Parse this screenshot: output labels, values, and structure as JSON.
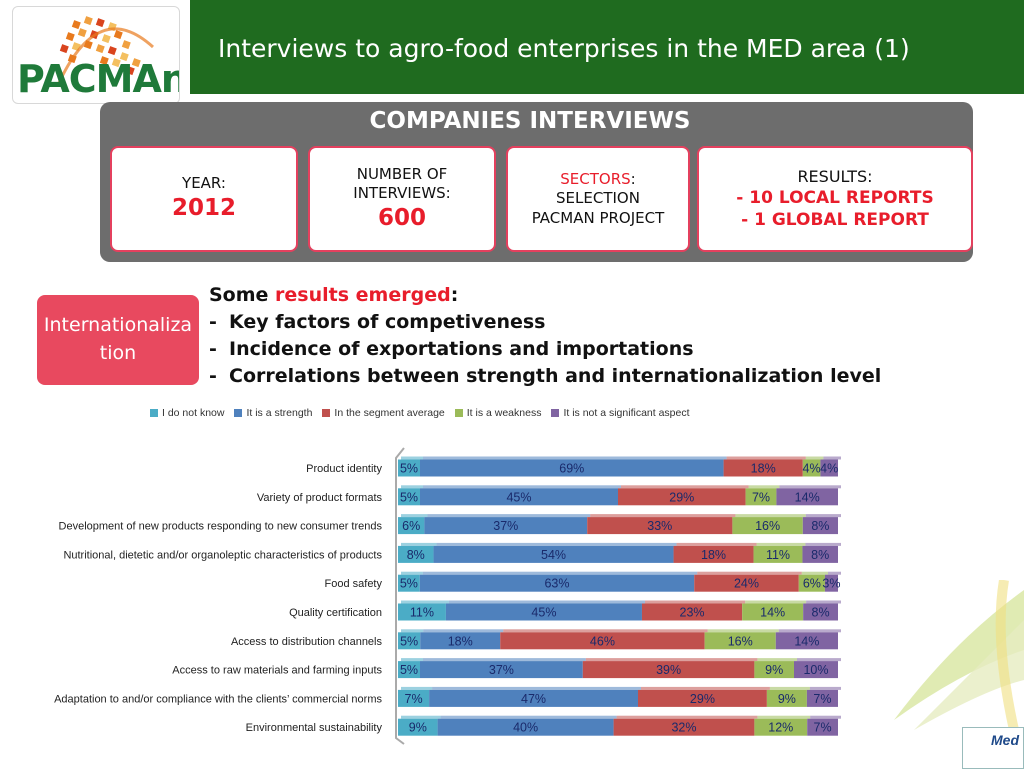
{
  "header": {
    "title": "Interviews to agro-food enterprises in the MED area (1)"
  },
  "logo": {
    "text": "PACMAn"
  },
  "panel": {
    "title": "COMPANIES INTERVIEWS",
    "cards": [
      {
        "label": "YEAR:",
        "value": "2012"
      },
      {
        "label": "NUMBER OF INTERVIEWS:",
        "value": "600"
      },
      {
        "label_red": "SECTORS",
        "label_suffix": ":",
        "text": "SELECTION PACMAN PROJECT"
      },
      {
        "label": "RESULTS:",
        "line1": "- 10 LOCAL REPORTS",
        "line2": "- 1 GLOBAL REPORT"
      }
    ]
  },
  "side_box": {
    "label": "Internationalization"
  },
  "results_text": {
    "intro_prefix": "Some ",
    "intro_red": "results emerged",
    "intro_suffix": ":",
    "dash": "-",
    "items": [
      "Key factors of competiveness",
      "Incidence of exportations and importations",
      "Correlations between strength and internationalization level"
    ]
  },
  "colors": {
    "header_green": "#1f6b1f",
    "accent_red": "#e81d2b",
    "card_border": "#e4405e",
    "side_box": "#e8495f"
  },
  "footer_logo": {
    "text": "Med"
  },
  "chart_data": {
    "type": "bar",
    "orientation": "horizontal",
    "stacked": true,
    "legend_position": "top",
    "categories": [
      "Product identity",
      "Variety of product formats",
      "Development of new products responding to new consumer trends",
      "Nutritional, dietetic and/or organoleptic characteristics of products",
      "Food safety",
      "Quality certification",
      "Access to distribution channels",
      "Access to raw materials and  farming inputs",
      "Adaptation to and/or compliance with the clients’ commercial norms",
      "Environmental sustainability"
    ],
    "series": [
      {
        "name": "I do not know",
        "color": "#4bacc6",
        "values": [
          5,
          5,
          6,
          8,
          5,
          11,
          5,
          5,
          7,
          9
        ]
      },
      {
        "name": "It is a strength",
        "color": "#4f81bd",
        "values": [
          69,
          45,
          37,
          54,
          63,
          45,
          18,
          37,
          47,
          40
        ]
      },
      {
        "name": "In the segment average",
        "color": "#c0504d",
        "values": [
          18,
          29,
          33,
          18,
          24,
          23,
          46,
          39,
          29,
          32
        ]
      },
      {
        "name": "It is a weakness",
        "color": "#9bbb59",
        "values": [
          4,
          7,
          16,
          11,
          6,
          14,
          16,
          9,
          9,
          12
        ]
      },
      {
        "name": "It is not a significant aspect",
        "color": "#8064a2",
        "values": [
          4,
          14,
          8,
          8,
          3,
          8,
          14,
          10,
          7,
          7
        ]
      }
    ],
    "value_suffix": "%"
  }
}
